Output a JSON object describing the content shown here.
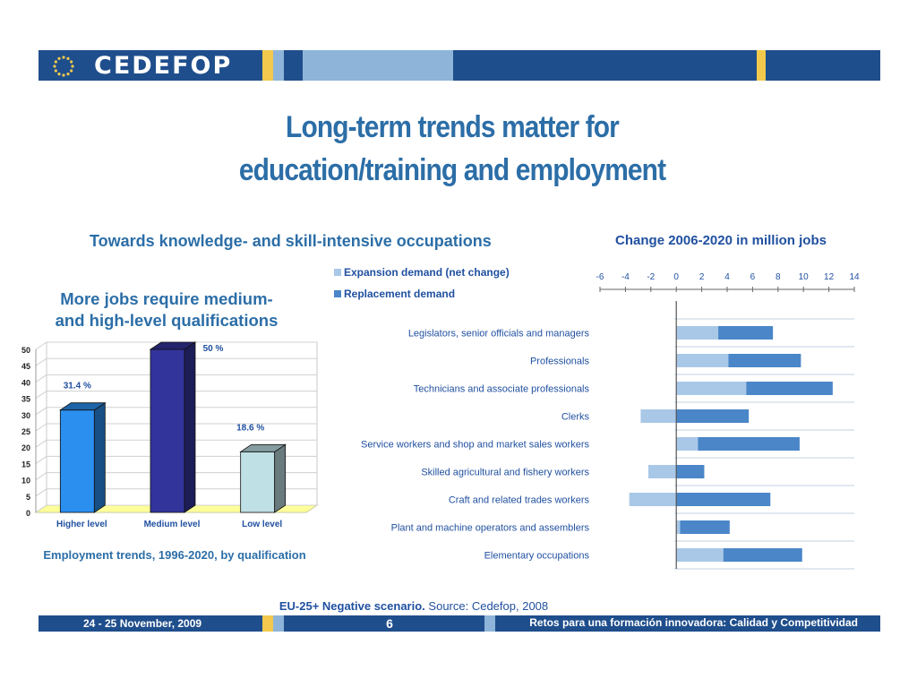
{
  "header": {
    "logo_text": "CEDEFOP",
    "colors": {
      "navy": "#1f4e8c",
      "light_blue": "#8eb4d9",
      "gold": "#f2c94c"
    }
  },
  "slide": {
    "title_line1": "Long-term trends matter for",
    "title_line2": "education/training and employment",
    "left_heading": "Towards knowledge- and skill-intensive occupations",
    "qual_heading_line1": "More jobs require medium-",
    "qual_heading_line2": "and high-level qualifications",
    "qual_caption": "Employment trends, 1996-2020, by qualification",
    "bottom_note_strong": "EU-25+ Negative scenario.",
    "bottom_note_source": "Source: Cedefop, 2008"
  },
  "footer": {
    "date": "24  - 25 November, 2009",
    "page": "6",
    "right_text": "Retos para una formación innovadora: Calidad y Competitividad"
  },
  "chart_data": [
    {
      "type": "bar",
      "categories": [
        "Higher level",
        "Medium level",
        "Low level"
      ],
      "values": [
        31.4,
        50,
        18.6
      ],
      "data_labels": [
        "31.4 %",
        "50 %",
        "18.6 %"
      ],
      "yticks": [
        "0",
        "5",
        "10",
        "15",
        "20",
        "25",
        "30",
        "35",
        "40",
        "45",
        "50"
      ],
      "ylim": [
        0,
        50
      ],
      "colors": [
        "#2b8ff0",
        "#33339c",
        "#bfe0e4"
      ],
      "grid": true
    },
    {
      "type": "bar",
      "orientation": "horizontal",
      "stacked": true,
      "title": "Change 2006-2020 in million jobs",
      "categories": [
        "Legislators, senior officials and managers",
        "Professionals",
        "Technicians and associate professionals",
        "Clerks",
        "Service workers and shop and market sales workers",
        "Skilled agricultural and fishery workers",
        "Craft and related trades workers",
        "Plant and machine operators and assemblers",
        "Elementary occupations"
      ],
      "series": [
        {
          "name": "Expansion demand (net change)",
          "color": "#a9c8e8",
          "values": [
            3.3,
            4.1,
            5.5,
            -2.8,
            1.7,
            -2.2,
            -3.7,
            0.3,
            3.7
          ]
        },
        {
          "name": "Replacement demand",
          "color": "#4a86c8",
          "values": [
            4.3,
            5.7,
            6.8,
            5.7,
            8.0,
            2.2,
            7.4,
            3.9,
            6.2
          ]
        }
      ],
      "xticks": [
        "-6",
        "-4",
        "-2",
        "0",
        "2",
        "4",
        "6",
        "8",
        "10",
        "12",
        "14"
      ],
      "xlim": [
        -6,
        14
      ],
      "legend_position": "top-left",
      "grid": true
    }
  ]
}
